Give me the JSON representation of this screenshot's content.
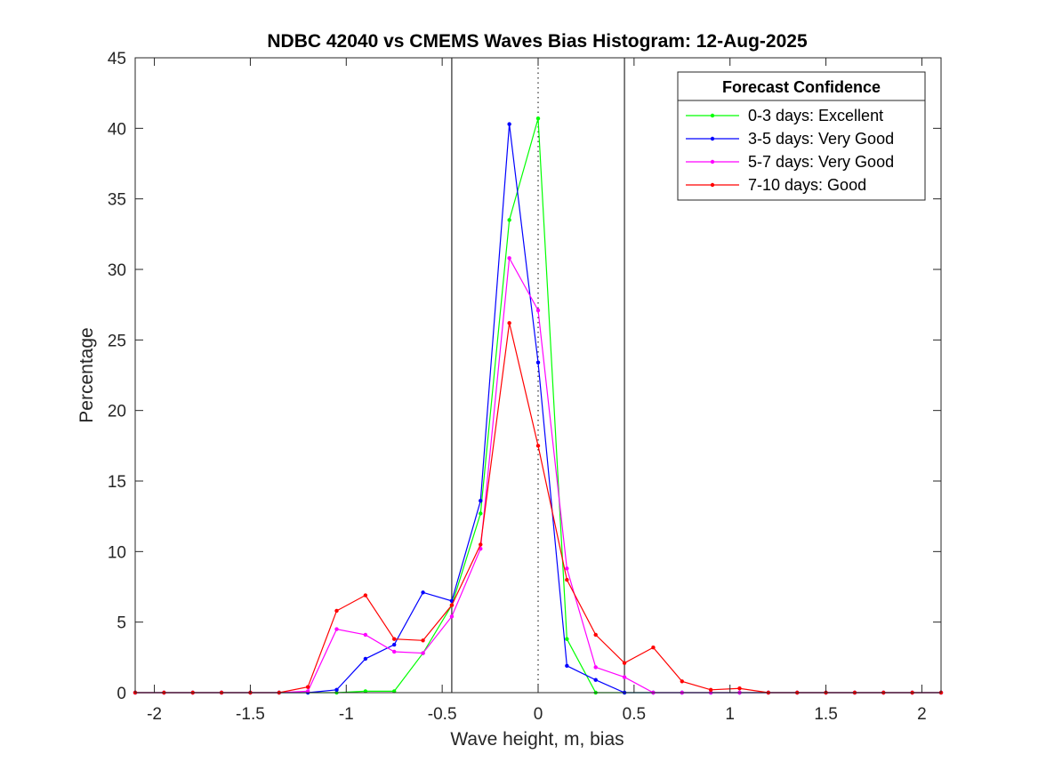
{
  "chart_data": {
    "type": "line",
    "title": "NDBC 42040 vs CMEMS Waves Bias Histogram: 12-Aug-2025",
    "xlabel": "Wave height, m, bias",
    "ylabel": "Percentage",
    "xlim": [
      -2.1,
      2.1
    ],
    "ylim": [
      0,
      45
    ],
    "xticks": [
      -2,
      -1.5,
      -1,
      -0.5,
      0,
      0.5,
      1,
      1.5,
      2
    ],
    "xtick_labels": [
      "-2",
      "-1.5",
      "-1",
      "-0.5",
      "0",
      "0.5",
      "1",
      "1.5",
      "2"
    ],
    "yticks": [
      0,
      5,
      10,
      15,
      20,
      25,
      30,
      35,
      40,
      45
    ],
    "ytick_labels": [
      "0",
      "5",
      "10",
      "15",
      "20",
      "25",
      "30",
      "35",
      "40",
      "45"
    ],
    "grid": false,
    "legend": {
      "title": "Forecast Confidence",
      "position": "top-right"
    },
    "reference_lines": [
      {
        "x": -0.45,
        "style": "solid"
      },
      {
        "x": 0,
        "style": "dotted"
      },
      {
        "x": 0.45,
        "style": "solid"
      }
    ],
    "x": [
      -2.1,
      -1.95,
      -1.8,
      -1.65,
      -1.5,
      -1.35,
      -1.2,
      -1.05,
      -0.9,
      -0.75,
      -0.6,
      -0.45,
      -0.3,
      -0.15,
      0,
      0.15,
      0.3,
      0.45,
      0.6,
      0.75,
      0.9,
      1.05,
      1.2,
      1.35,
      1.5,
      1.65,
      1.8,
      1.95,
      2.1
    ],
    "series": [
      {
        "name": "0-3 days: Excellent",
        "color": "#00ff00",
        "values": [
          0,
          0,
          0,
          0,
          0,
          0,
          0,
          0,
          0.1,
          0.1,
          2.8,
          6.2,
          12.7,
          33.5,
          40.7,
          3.8,
          0,
          0,
          0,
          0,
          0,
          0,
          0,
          0,
          0,
          0,
          0,
          0,
          0
        ]
      },
      {
        "name": "3-5 days: Very Good",
        "color": "#0000ff",
        "values": [
          0,
          0,
          0,
          0,
          0,
          0,
          0,
          0.2,
          2.4,
          3.4,
          7.1,
          6.5,
          13.6,
          40.3,
          23.4,
          1.9,
          0.9,
          0,
          0,
          0,
          0,
          0,
          0,
          0,
          0,
          0,
          0,
          0,
          0
        ]
      },
      {
        "name": "5-7 days: Very Good",
        "color": "#ff00ff",
        "values": [
          0,
          0,
          0,
          0,
          0,
          0,
          0.1,
          4.5,
          4.1,
          2.9,
          2.8,
          5.4,
          10.2,
          30.8,
          27.1,
          8.8,
          1.8,
          1.1,
          0,
          0,
          0,
          0,
          0,
          0,
          0,
          0,
          0,
          0,
          0
        ]
      },
      {
        "name": "7-10 days: Good",
        "color": "#ff0000",
        "values": [
          0,
          0,
          0,
          0,
          0,
          0,
          0.4,
          5.8,
          6.9,
          3.8,
          3.7,
          6.2,
          10.5,
          26.2,
          17.5,
          8.0,
          4.1,
          2.1,
          3.2,
          0.8,
          0.2,
          0.3,
          0,
          0,
          0,
          0,
          0,
          0,
          0
        ]
      }
    ]
  }
}
